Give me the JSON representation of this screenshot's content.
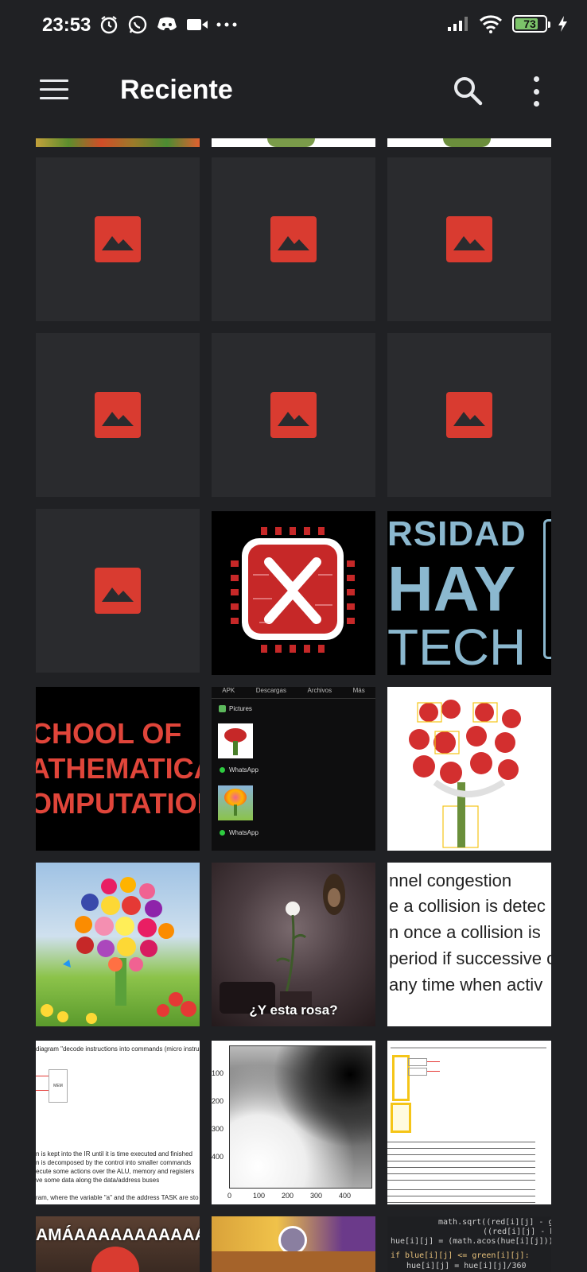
{
  "status_bar": {
    "time": "23:53",
    "battery": "73",
    "icons": [
      "alarm-icon",
      "whatsapp-icon",
      "discord-icon",
      "video-icon",
      "more-dots-icon",
      "signal-icon",
      "wifi-icon",
      "battery-icon",
      "charging-icon"
    ]
  },
  "app_bar": {
    "title": "Reciente",
    "icons": [
      "menu-icon",
      "search-icon",
      "overflow-icon"
    ]
  },
  "thumbnails": {
    "row3_col3_lines": [
      "RSIDAD",
      "HAY",
      "TECH"
    ],
    "row4_col1_lines": [
      "CHOOL OF",
      "ATHEMATICA",
      "OMPUTATION"
    ],
    "row4_col2": {
      "tabs": [
        "APK",
        "Descargas",
        "Archivos",
        "Más"
      ],
      "folders": [
        "Pictures",
        "WhatsApp",
        "WhatsApp"
      ]
    },
    "row5_col2_caption": "¿Y esta rosa?",
    "row5_col3_lines": [
      "nnel congestion",
      "e a collision is detec",
      "n once a collision is",
      "period if successive c",
      "any time when activ"
    ],
    "row6_col1_lines": [
      "diagram \"decode instructions into commands (micro instru",
      "n is kept into the IR until it is time executed and finished",
      "n is decomposed by the control into smaller commands",
      "ecute some actions over the ALU, memory and registers",
      "ve some data along the data/address buses",
      "ram, where the variable \"a\" and the address TASK are sto"
    ],
    "row6_col2_axes": {
      "y_ticks": [
        "100",
        "200",
        "300",
        "400"
      ],
      "x_ticks": [
        "0",
        "100",
        "200",
        "300",
        "400"
      ]
    },
    "row7_col1_text": "AMÁAAAAAAAAAAAA",
    "row7_col3_code": [
      "math.sqrt((red[i][j] - gree",
      "((red[i][j] - blue",
      "hue[i][j] = (math.acos(hue[i][j]))*180/",
      "if blue[i][j] <= green[i][j]:",
      "hue[i][j] = hue[i][j]/360"
    ]
  }
}
